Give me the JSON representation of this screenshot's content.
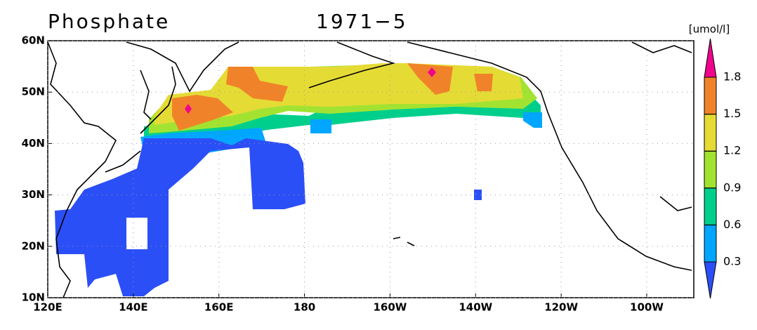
{
  "chart_data": {
    "type": "map",
    "title": "Phosphate",
    "subtitle": "1971−5",
    "xlim": [
      120,
      271
    ],
    "ylim": [
      10,
      60
    ],
    "xticks": [
      {
        "value": 120,
        "label": "120E"
      },
      {
        "value": 140,
        "label": "140E"
      },
      {
        "value": 160,
        "label": "160E"
      },
      180,
      {
        "value": 200,
        "label": "160W"
      },
      {
        "value": 220,
        "label": "140W"
      },
      {
        "value": 240,
        "label": "120W"
      },
      {
        "value": 260,
        "label": "100W"
      }
    ],
    "yticks": [
      {
        "value": 10,
        "label": "10N"
      },
      {
        "value": 20,
        "label": "20N"
      },
      {
        "value": 30,
        "label": "30N"
      },
      {
        "value": 40,
        "label": "40N"
      },
      {
        "value": 50,
        "label": "50N"
      },
      {
        "value": 60,
        "label": "60N"
      }
    ],
    "grid": true,
    "colorbar": {
      "label": "[umol/l]",
      "levels": [
        0.3,
        0.6,
        0.9,
        1.2,
        1.5,
        1.8
      ],
      "colors": [
        "#2b4ff6",
        "#00a6ff",
        "#00cf8c",
        "#a2e332",
        "#e5db35",
        "#f08329",
        "#f0048c"
      ]
    }
  }
}
